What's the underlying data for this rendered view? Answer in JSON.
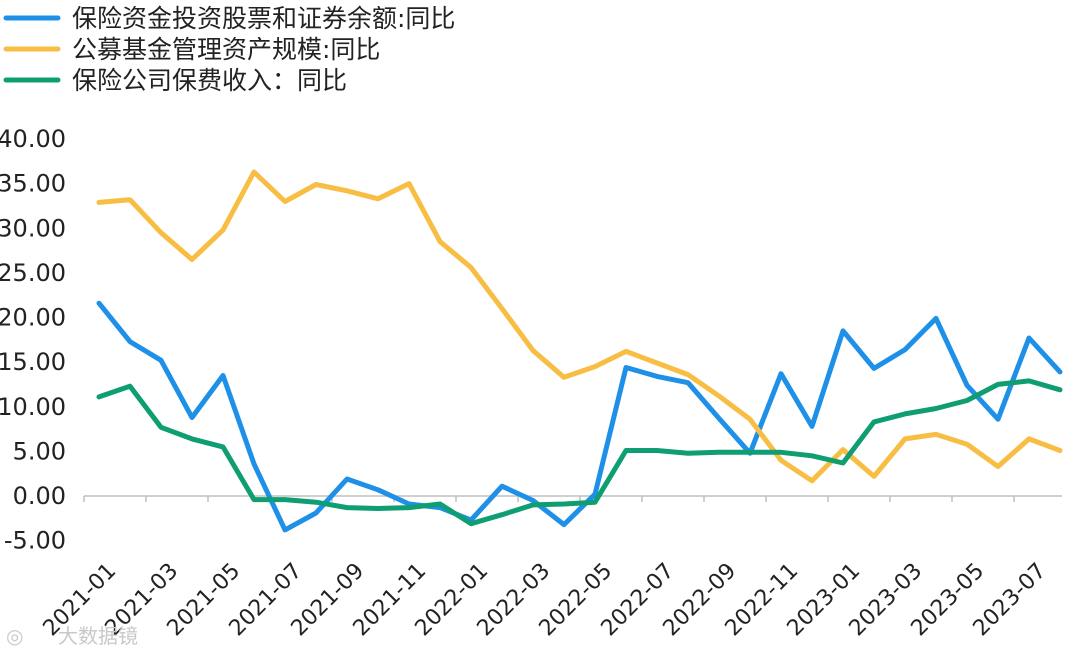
{
  "chart_data": {
    "type": "line",
    "title": "",
    "xlabel": "",
    "ylabel": "",
    "ylim": [
      -5,
      40
    ],
    "yticks": [
      "40.00",
      "35.00",
      "30.00",
      "25.00",
      "20.00",
      "15.00",
      "10.00",
      "5.00",
      "0.00",
      "-5.00"
    ],
    "yticks_values": [
      40,
      35,
      30,
      25,
      20,
      15,
      10,
      5,
      0,
      -5
    ],
    "x": [
      "2021-01",
      "2021-02",
      "2021-03",
      "2021-04",
      "2021-05",
      "2021-06",
      "2021-07",
      "2021-08",
      "2021-09",
      "2021-10",
      "2021-11",
      "2021-12",
      "2022-01",
      "2022-02",
      "2022-03",
      "2022-04",
      "2022-05",
      "2022-06",
      "2022-07",
      "2022-08",
      "2022-09",
      "2022-10",
      "2022-11",
      "2022-12",
      "2023-01",
      "2023-02",
      "2023-03",
      "2023-04",
      "2023-05",
      "2023-06",
      "2023-07",
      "2023-08"
    ],
    "xtick_labels": [
      "2021-01",
      "2021-03",
      "2021-05",
      "2021-07",
      "2021-09",
      "2021-11",
      "2022-01",
      "2022-03",
      "2022-05",
      "2022-07",
      "2022-09",
      "2022-11",
      "2023-01",
      "2023-03",
      "2023-05",
      "2023-07"
    ],
    "grid": false,
    "legend_position": "top-left",
    "series": [
      {
        "name": "保险资金投资股票和证券余额:同比",
        "color": "#1e90e8",
        "values": [
          21.6,
          17.3,
          15.2,
          8.8,
          13.5,
          3.6,
          -3.8,
          -1.9,
          1.9,
          0.7,
          -0.9,
          -1.3,
          -2.7,
          1.1,
          -0.5,
          -3.2,
          0.2,
          14.4,
          13.4,
          12.7,
          8.7,
          4.8,
          13.7,
          7.8,
          18.5,
          14.3,
          16.4,
          19.9,
          12.4,
          8.6,
          17.7,
          13.9
        ]
      },
      {
        "name": "公募基金管理资产规模:同比",
        "color": "#f8bd43",
        "values": [
          32.9,
          33.2,
          29.5,
          26.5,
          29.8,
          36.3,
          33.0,
          34.9,
          34.2,
          33.3,
          35.0,
          28.5,
          25.6,
          21.0,
          16.3,
          13.3,
          14.5,
          16.2,
          14.9,
          13.6,
          11.2,
          8.6,
          4.0,
          1.7,
          5.2,
          2.2,
          6.4,
          6.9,
          5.8,
          3.3,
          6.4,
          5.1
        ]
      },
      {
        "name": "保险公司保费收入：同比",
        "color": "#0e9e72",
        "values": [
          11.1,
          12.3,
          7.7,
          6.4,
          5.5,
          -0.4,
          -0.4,
          -0.7,
          -1.3,
          -1.4,
          -1.3,
          -0.9,
          -3.1,
          -2.1,
          -1.0,
          -0.9,
          -0.7,
          5.1,
          5.1,
          4.8,
          4.9,
          4.9,
          4.9,
          4.5,
          3.7,
          8.3,
          9.2,
          9.8,
          10.7,
          12.5,
          12.9,
          11.9
        ]
      }
    ]
  },
  "watermark": {
    "text": "大数据镜"
  }
}
